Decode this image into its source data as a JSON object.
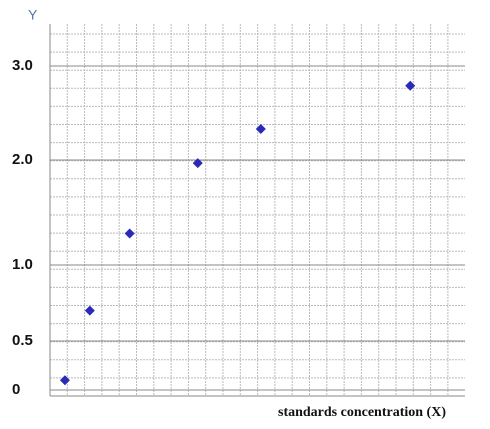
{
  "chart_data": {
    "type": "scatter",
    "y_label": "Y",
    "x_label": "standards concentration (X)",
    "x": [
      0.9,
      2.4,
      4.8,
      8.9,
      12.7,
      21.7
    ],
    "values": [
      0.1,
      0.7,
      1.3,
      1.97,
      2.33,
      2.79
    ],
    "color": "#2a2ab8",
    "xlim": [
      0,
      25
    ],
    "ylim": [
      0,
      3.3
    ],
    "yticks": [
      0,
      0.5,
      {
        "value": 1,
        "label": "1.0"
      },
      {
        "value": 2,
        "label": "2.0"
      },
      {
        "value": 3,
        "label": "3.0"
      }
    ],
    "grid": true
  }
}
